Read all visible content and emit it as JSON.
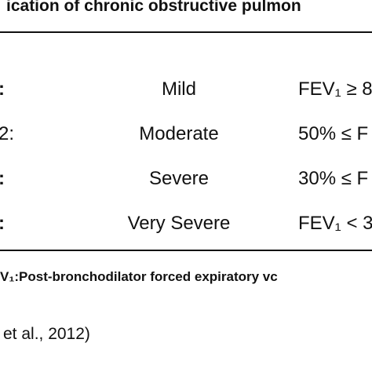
{
  "header": {
    "title": "ication of chronic obstructive pulmon"
  },
  "table": {
    "rows": [
      [
        ":",
        "Mild",
        "FEV₁ ≥ 8"
      ],
      [
        "2:",
        "Moderate",
        "50% ≤ F"
      ],
      [
        ":",
        "Severe",
        "30% ≤ F"
      ],
      [
        ":",
        "Very Severe",
        "FEV₁ < 3"
      ]
    ]
  },
  "footnote": "V₁:Post-bronchodilator forced expiratory vc",
  "citation": "et al., 2012)"
}
